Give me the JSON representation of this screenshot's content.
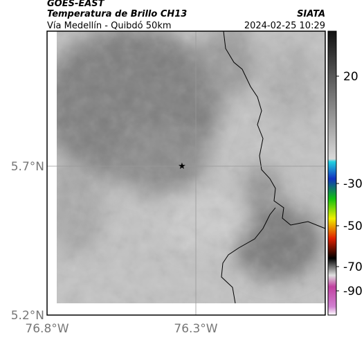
{
  "header": {
    "title": "GOES-EAST",
    "subtitle": "Temperatura de Brillo CH13",
    "source": "SIATA",
    "location": "Vía Medellín - Quibdó 50km",
    "datetime": "2024-02-25 10:29"
  },
  "map": {
    "lat_ticks": [
      "5.7°N",
      "5.2°N"
    ],
    "lon_ticks": [
      "76.8°W",
      "76.3°W"
    ]
  },
  "colorbar": {
    "ticks": [
      20,
      -30,
      -50,
      -70,
      -90
    ]
  }
}
